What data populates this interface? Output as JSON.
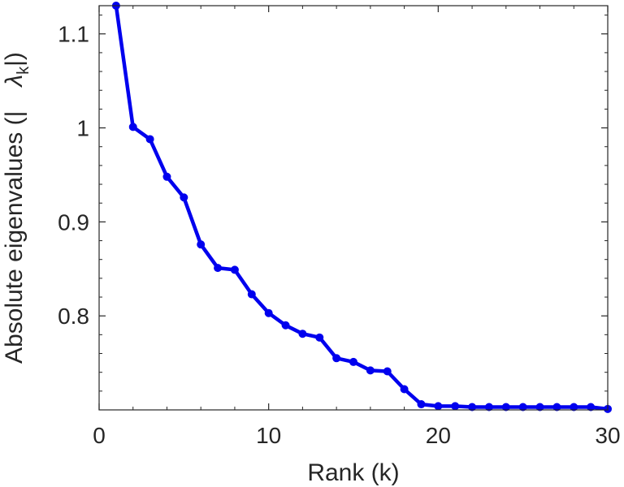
{
  "chart_data": {
    "type": "line",
    "title": "",
    "xlabel": "Rank (k)",
    "ylabel_prefix": "Absolute eigenvalues (|",
    "ylabel_symbol": "λ",
    "ylabel_subscript": "k",
    "ylabel_suffix": "|)",
    "xlim": [
      0,
      30
    ],
    "ylim": [
      0.7,
      1.13
    ],
    "xticks": [
      0,
      10,
      20,
      30
    ],
    "yticks": [
      0.8,
      0.9,
      1,
      1.1
    ],
    "xtick_labels": [
      "0",
      "10",
      "20",
      "30"
    ],
    "ytick_labels": [
      "0.8",
      "0.9",
      "1",
      "1.1"
    ],
    "grid": false,
    "series": [
      {
        "color": "#0000ee",
        "x": [
          1,
          2,
          3,
          4,
          5,
          6,
          7,
          8,
          9,
          10,
          11,
          12,
          13,
          14,
          15,
          16,
          17,
          18,
          19,
          20,
          21,
          22,
          23,
          24,
          25,
          26,
          27,
          28,
          29,
          30
        ],
        "y": [
          1.13,
          1.001,
          0.988,
          0.948,
          0.926,
          0.876,
          0.851,
          0.849,
          0.823,
          0.803,
          0.79,
          0.781,
          0.777,
          0.755,
          0.751,
          0.742,
          0.741,
          0.722,
          0.706,
          0.704,
          0.704,
          0.703,
          0.703,
          0.703,
          0.703,
          0.703,
          0.703,
          0.703,
          0.703,
          0.701
        ]
      }
    ]
  }
}
